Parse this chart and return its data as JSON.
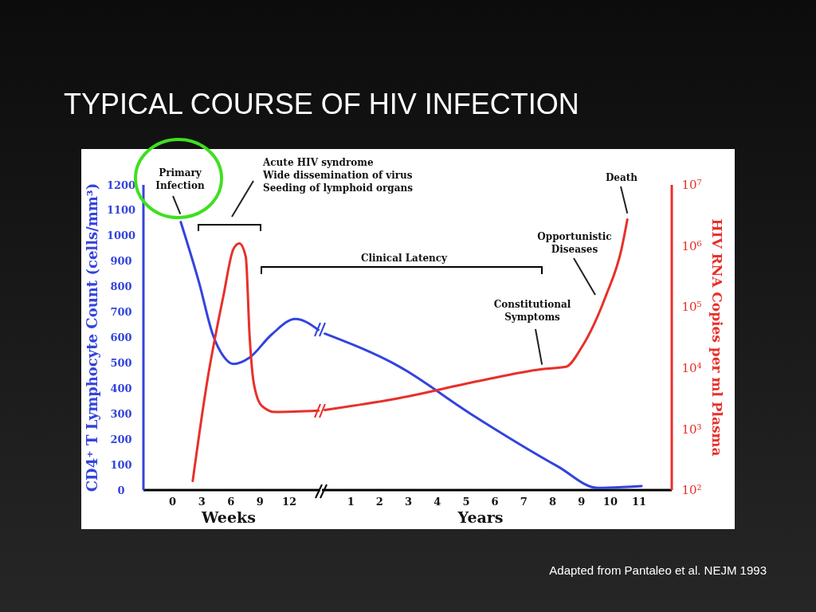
{
  "chart_data": [
    {
      "type": "line",
      "title": "TYPICAL COURSE OF HIV INFECTION",
      "ylabel": "CD4⁺ T Lymphocyte Count (cells/mm³)",
      "xlabel": "Weeks",
      "annotations": [
        {
          "text": "Primary Infection",
          "x": 0.8,
          "y": 1060
        },
        "Acute HIV syndrome\nWide dissemination of virus\nSeeding of lymphoid organs"
      ],
      "xlim": [
        -3,
        15.2
      ],
      "xticks": [
        0,
        3,
        6,
        9,
        12
      ],
      "ylim": [
        0,
        1200
      ],
      "yticks": [
        0,
        100,
        200,
        300,
        400,
        500,
        600,
        700,
        800,
        900,
        1000,
        1100,
        1200
      ],
      "y2lim": [
        100,
        10000000
      ],
      "log": "y2",
      "tick_labels": [
        "x",
        "y"
      ],
      "series": [
        {
          "color": "#3344dd",
          "x": [
            0.84,
            2.73,
            4.14,
            5.22,
            6.27,
            7.92,
            10.17,
            12.63,
            15
          ],
          "values": [
            1054,
            815,
            611,
            527,
            496,
            521,
            611,
            673,
            630
          ]
        },
        {
          "color": "#e8302a",
          "axis": "y2",
          "x": [
            2.07,
            3.54,
            5.22,
            6.27,
            6.87,
            7.53,
            7.92,
            8.34,
            9.18,
            10.59,
            15
          ],
          "values": [
            141,
            5800,
            150000,
            900000,
            1100000,
            660000,
            34000,
            5800,
            2400,
            1900,
            2000
          ]
        }
      ]
    },
    {
      "type": "line",
      "xlabel": "Years",
      "y2label": "HIV RNA Copies per ml Plasma",
      "annotations": [
        "Clinical Latency",
        {
          "text": "Constitutional Symptoms",
          "x": 7.63,
          "y": 468
        },
        "Opportunistic Diseases",
        {
          "text": "Death",
          "x": 10.59,
          "y": 1063
        },
        "Adapted from Pantaleo et al. NEJM 1993"
      ],
      "xlim": [
        0,
        12.13
      ],
      "xticks": [
        1,
        2,
        3,
        4,
        5,
        6,
        7,
        8,
        9,
        10,
        11
      ],
      "ylim": [
        0,
        1200
      ],
      "y2lim": [
        100,
        10000000
      ],
      "y2ticks": [
        {
          "value": 100,
          "label": "10²"
        },
        {
          "value": 1000,
          "label": "10³"
        },
        {
          "value": 10000,
          "label": "10⁴"
        },
        {
          "value": 100000,
          "label": "10⁵"
        },
        {
          "value": 1000000,
          "label": "10⁶"
        },
        {
          "value": 10000000,
          "label": "10⁷"
        }
      ],
      "log": "y2",
      "tick_labels": [
        "x",
        "y2"
      ],
      "series": [
        {
          "color": "#3344dd",
          "x": [
            0.1,
            2.66,
            5.14,
            8.18,
            9.56,
            11.08
          ],
          "values": [
            615,
            487,
            301,
            93,
            9,
            16
          ]
        },
        {
          "color": "#e8302a",
          "axis": "y2",
          "x": [
            0.1,
            2.66,
            5.42,
            7.63,
            8.46,
            9.01,
            9.84,
            10.39,
            10.59
          ],
          "values": [
            2050,
            3200,
            6100,
            9600,
            10500,
            22000,
            150000,
            900000,
            2700000
          ]
        }
      ]
    }
  ]
}
